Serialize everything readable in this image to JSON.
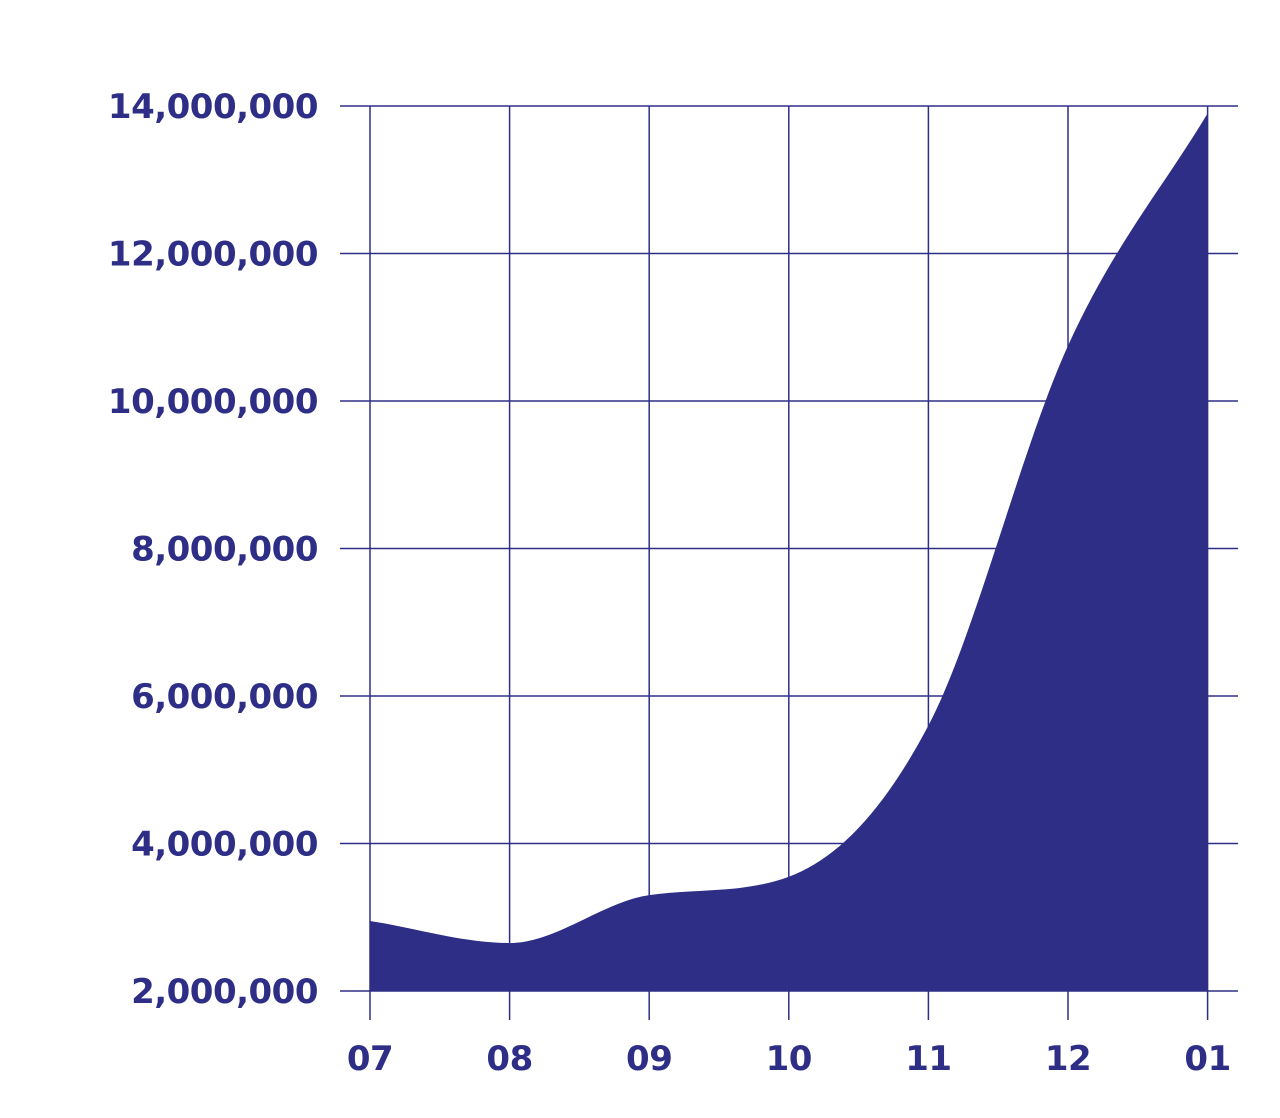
{
  "chart_data": {
    "type": "area",
    "title": "",
    "xlabel": "",
    "ylabel": "",
    "x": [
      "07",
      "08",
      "09",
      "10",
      "11",
      "12",
      "01"
    ],
    "series": [
      {
        "values": [
          2950000,
          2650000,
          3300000,
          3550000,
          5600000,
          10750000,
          13900000
        ]
      }
    ],
    "x_tick_labels": [
      "07",
      "08",
      "09",
      "10",
      "11",
      "12",
      "01"
    ],
    "y_ticks": [
      2000000,
      4000000,
      6000000,
      8000000,
      10000000,
      12000000,
      14000000
    ],
    "y_tick_labels": [
      "2,000,000",
      "4,000,000",
      "6,000,000",
      "8,000,000",
      "10,000,000",
      "12,000,000",
      "14,000,000"
    ],
    "ylim": [
      2000000,
      14000000
    ],
    "grid": true,
    "legend": "none",
    "colors": {
      "fill": "#2e2e87",
      "grid": "#2e2e87",
      "text": "#2e2e87"
    }
  }
}
